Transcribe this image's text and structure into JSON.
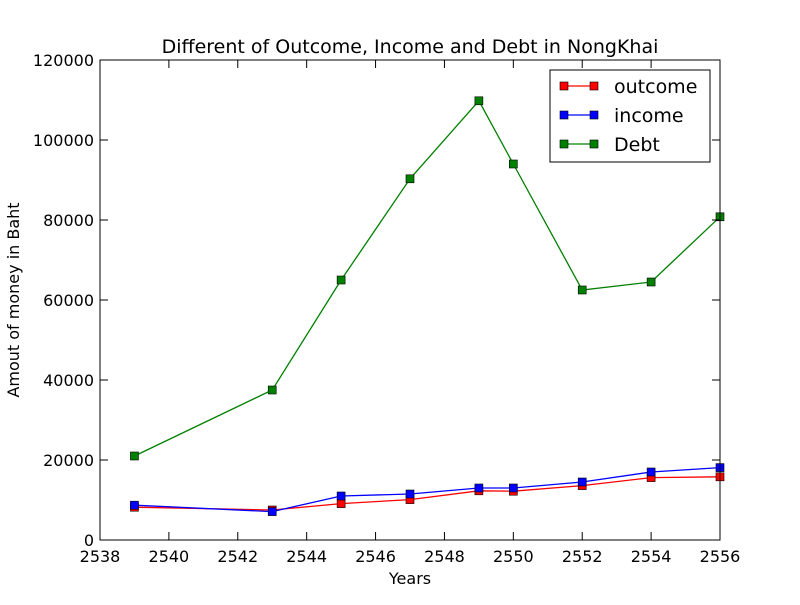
{
  "chart_data": {
    "type": "line",
    "title": "Different of Outcome, Income and Debt in NongKhai",
    "xlabel": "Years",
    "ylabel": "Amout of money in Baht",
    "xlim": [
      2538,
      2556
    ],
    "ylim": [
      0,
      120000
    ],
    "xticks": [
      2538,
      2540,
      2542,
      2544,
      2546,
      2548,
      2550,
      2552,
      2554,
      2556
    ],
    "yticks": [
      0,
      20000,
      40000,
      60000,
      80000,
      100000,
      120000
    ],
    "grid": false,
    "legend_position": "top-right",
    "x": [
      2539,
      2543,
      2545,
      2547,
      2549,
      2550,
      2552,
      2554,
      2556
    ],
    "series": [
      {
        "name": "outcome",
        "color": "#ff0000",
        "marker": "square",
        "values": [
          8200,
          7500,
          9100,
          10100,
          12300,
          12200,
          13600,
          15600,
          15800
        ]
      },
      {
        "name": "income",
        "color": "#0000ff",
        "marker": "square",
        "values": [
          8700,
          7100,
          11000,
          11500,
          13000,
          13000,
          14500,
          17000,
          18100
        ]
      },
      {
        "name": "Debt",
        "color": "#008000",
        "marker": "square",
        "values": [
          21000,
          37500,
          65000,
          90300,
          109800,
          94000,
          62500,
          64500,
          80800
        ]
      }
    ]
  }
}
